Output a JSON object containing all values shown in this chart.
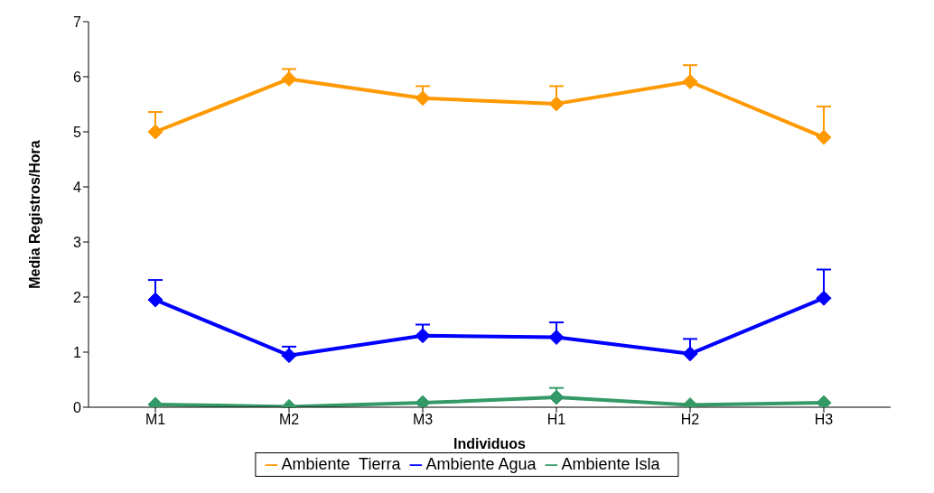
{
  "chart_data": {
    "type": "line",
    "xlabel": "Individuos",
    "ylabel": "Media Registros/Hora",
    "categories": [
      "M1",
      "M2",
      "M3",
      "H1",
      "H2",
      "H3"
    ],
    "ylim": [
      0,
      7
    ],
    "yticks": [
      0,
      1,
      2,
      3,
      4,
      5,
      6,
      7
    ],
    "grid": false,
    "legend": "bottom",
    "marker": "diamond",
    "line_style": "solid",
    "series": [
      {
        "name": "Ambiente  Tierra",
        "color": "#ff9900",
        "values": [
          5.0,
          5.96,
          5.61,
          5.51,
          5.91,
          4.9
        ],
        "errors": [
          [
            5.0,
            5.36
          ],
          [
            5.96,
            6.14
          ],
          [
            5.61,
            5.83
          ],
          [
            5.51,
            5.83
          ],
          [
            5.91,
            6.21
          ],
          [
            4.9,
            5.46
          ]
        ]
      },
      {
        "name": "Ambiente Agua",
        "color": "#0000ff",
        "values": [
          1.95,
          0.94,
          1.3,
          1.27,
          0.97,
          1.98
        ],
        "errors": [
          [
            1.95,
            2.31
          ],
          [
            0.94,
            1.1
          ],
          [
            1.3,
            1.5
          ],
          [
            1.27,
            1.54
          ],
          [
            0.97,
            1.24
          ],
          [
            1.98,
            2.5
          ]
        ]
      },
      {
        "name": "Ambiente Isla",
        "color": "#339966",
        "values": [
          0.05,
          0.01,
          0.08,
          0.18,
          0.04,
          0.08
        ],
        "errors": [
          null,
          null,
          null,
          [
            0.18,
            0.35
          ],
          null,
          null
        ]
      }
    ]
  }
}
